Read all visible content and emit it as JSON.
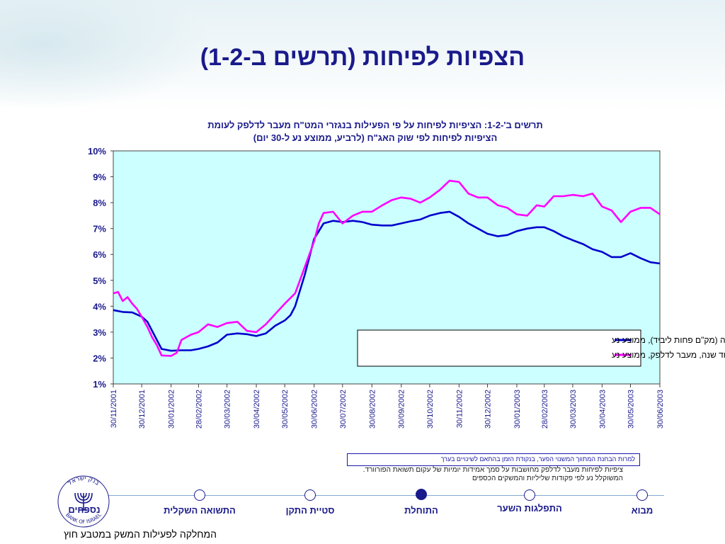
{
  "slide": {
    "title": "הצפיות לפיחות (תרשים ב-1-2)",
    "note_box": "למרות הבחנת המתווך המשנוי הפער, בנקודת הזמן בהתאם לשינויים בערך",
    "footnote_line1": "ציפיות לפיחות מעבר לדלפק מחושבות על סמך אמידות יומיות של עקום תשואת הפורוורד.",
    "footnote_line2": "המשוקלל נע לפי פקודות שליליות והמשקים הכספים"
  },
  "nav": {
    "items": [
      {
        "label": "מבוא",
        "active": false
      },
      {
        "label": "התפלגות השער",
        "active": false
      },
      {
        "label": "התוחלת",
        "active": true
      },
      {
        "label": "סטיית התקן",
        "active": false
      },
      {
        "label": "התשואה השקלית",
        "active": false
      }
    ],
    "logo_label": "נספחים",
    "logo_ring_he": "בנק ישראל",
    "logo_ring_en": "BANK OF ISRAEL",
    "department": "המחלקה לפעילות המשק במטבע חוץ"
  },
  "colors": {
    "title": "#1a1a8c",
    "plot_bg": "#ccffff",
    "series_blue": "#0000cc",
    "series_magenta": "#ff00ff"
  },
  "chart_data": {
    "type": "line",
    "title_line1": "תרשים ב'-1-2: הציפיות לפיחות על פי הפעילות בנגזרי המט\"ח מעבר לדלפק לעומת",
    "title_line2": "הציפיות לפיחות לפי שוק האג\"ח (לרביע, ממוצע נע ל-30 יום)",
    "ylim": [
      1,
      10
    ],
    "y_ticks": [
      "1%",
      "2%",
      "3%",
      "4%",
      "5%",
      "6%",
      "7%",
      "8%",
      "9%",
      "10%"
    ],
    "x_ticks": [
      "30/11/2001",
      "30/12/2001",
      "30/01/2002",
      "28/02/2002",
      "30/03/2002",
      "30/04/2002",
      "30/05/2002",
      "30/06/2002",
      "30/07/2002",
      "30/08/2002",
      "30/09/2002",
      "30/10/2002",
      "30/11/2002",
      "30/12/2002",
      "30/01/2003",
      "28/02/2003",
      "30/03/2003",
      "30/04/2003",
      "30/05/2003",
      "30/06/2003"
    ],
    "grid": false,
    "legend_position": "lower-right",
    "series": [
      {
        "name": "ציפיות לפיחות בעוד שנה (מק\"ם פחות ליביד), ממוצע נע",
        "color": "#0000cc",
        "x": [
          "2001-11-30",
          "2001-12-10",
          "2001-12-20",
          "2001-12-30",
          "2002-01-05",
          "2002-01-10",
          "2002-01-15",
          "2002-01-20",
          "2002-01-30",
          "2002-02-10",
          "2002-02-20",
          "2002-02-28",
          "2002-03-10",
          "2002-03-20",
          "2002-03-30",
          "2002-04-10",
          "2002-04-20",
          "2002-04-30",
          "2002-05-10",
          "2002-05-20",
          "2002-05-30",
          "2002-06-05",
          "2002-06-10",
          "2002-06-15",
          "2002-06-20",
          "2002-06-25",
          "2002-06-30",
          "2002-07-10",
          "2002-07-20",
          "2002-07-30",
          "2002-08-10",
          "2002-08-20",
          "2002-08-30",
          "2002-09-10",
          "2002-09-20",
          "2002-09-30",
          "2002-10-10",
          "2002-10-20",
          "2002-10-30",
          "2002-11-10",
          "2002-11-20",
          "2002-11-30",
          "2002-12-10",
          "2002-12-20",
          "2002-12-30",
          "2003-01-10",
          "2003-01-20",
          "2003-01-30",
          "2003-02-10",
          "2003-02-20",
          "2003-02-28",
          "2003-03-10",
          "2003-03-20",
          "2003-03-30",
          "2003-04-10",
          "2003-04-20",
          "2003-04-30",
          "2003-05-10",
          "2003-05-20",
          "2003-05-30",
          "2003-06-10",
          "2003-06-20",
          "2003-06-30"
        ],
        "values": [
          3.85,
          3.78,
          3.76,
          3.6,
          3.4,
          3.05,
          2.7,
          2.35,
          2.28,
          2.3,
          2.3,
          2.35,
          2.45,
          2.6,
          2.9,
          2.95,
          2.92,
          2.85,
          2.95,
          3.25,
          3.45,
          3.65,
          4.0,
          4.6,
          5.2,
          5.9,
          6.6,
          7.2,
          7.3,
          7.25,
          7.3,
          7.25,
          7.15,
          7.12,
          7.12,
          7.2,
          7.28,
          7.35,
          7.5,
          7.6,
          7.65,
          7.45,
          7.2,
          7.0,
          6.8,
          6.7,
          6.75,
          6.9,
          7.0,
          7.05,
          7.05,
          6.9,
          6.7,
          6.55,
          6.4,
          6.2,
          6.1,
          5.9,
          5.9,
          6.05,
          5.85,
          5.7,
          5.65
        ]
      },
      {
        "name": "ציפיות לפיחות בעוד שנה, מעבר לדלפק, ממוצע נע",
        "color": "#ff00ff",
        "x": [
          "2001-11-30",
          "2001-12-05",
          "2001-12-10",
          "2001-12-15",
          "2001-12-20",
          "2001-12-25",
          "2001-12-30",
          "2002-01-05",
          "2002-01-10",
          "2002-01-15",
          "2002-01-20",
          "2002-01-30",
          "2002-02-05",
          "2002-02-10",
          "2002-02-20",
          "2002-02-28",
          "2002-03-10",
          "2002-03-20",
          "2002-03-30",
          "2002-04-10",
          "2002-04-20",
          "2002-04-30",
          "2002-05-10",
          "2002-05-20",
          "2002-05-30",
          "2002-06-10",
          "2002-06-15",
          "2002-06-20",
          "2002-06-25",
          "2002-06-30",
          "2002-07-05",
          "2002-07-10",
          "2002-07-20",
          "2002-07-30",
          "2002-08-10",
          "2002-08-20",
          "2002-08-30",
          "2002-09-10",
          "2002-09-20",
          "2002-09-30",
          "2002-10-10",
          "2002-10-20",
          "2002-10-30",
          "2002-11-10",
          "2002-11-20",
          "2002-11-30",
          "2002-12-10",
          "2002-12-20",
          "2002-12-30",
          "2003-01-10",
          "2003-01-20",
          "2003-01-30",
          "2003-02-10",
          "2003-02-20",
          "2003-02-28",
          "2003-03-10",
          "2003-03-20",
          "2003-03-30",
          "2003-04-10",
          "2003-04-20",
          "2003-04-30",
          "2003-05-10",
          "2003-05-20",
          "2003-05-30",
          "2003-06-10",
          "2003-06-20",
          "2003-06-30"
        ],
        "values": [
          4.5,
          4.55,
          4.2,
          4.35,
          4.1,
          3.9,
          3.6,
          3.2,
          2.8,
          2.5,
          2.1,
          2.08,
          2.2,
          2.7,
          2.9,
          3.0,
          3.3,
          3.2,
          3.35,
          3.4,
          3.05,
          3.0,
          3.3,
          3.7,
          4.1,
          4.5,
          5.0,
          5.5,
          6.0,
          6.5,
          7.2,
          7.6,
          7.65,
          7.2,
          7.5,
          7.65,
          7.65,
          7.9,
          8.1,
          8.2,
          8.15,
          8.0,
          8.2,
          8.5,
          8.85,
          8.8,
          8.35,
          8.2,
          8.2,
          7.9,
          7.8,
          7.55,
          7.5,
          7.9,
          7.85,
          8.25,
          8.25,
          8.3,
          8.25,
          8.35,
          7.85,
          7.7,
          7.25,
          7.65,
          7.8,
          7.8,
          7.55
        ]
      }
    ]
  }
}
